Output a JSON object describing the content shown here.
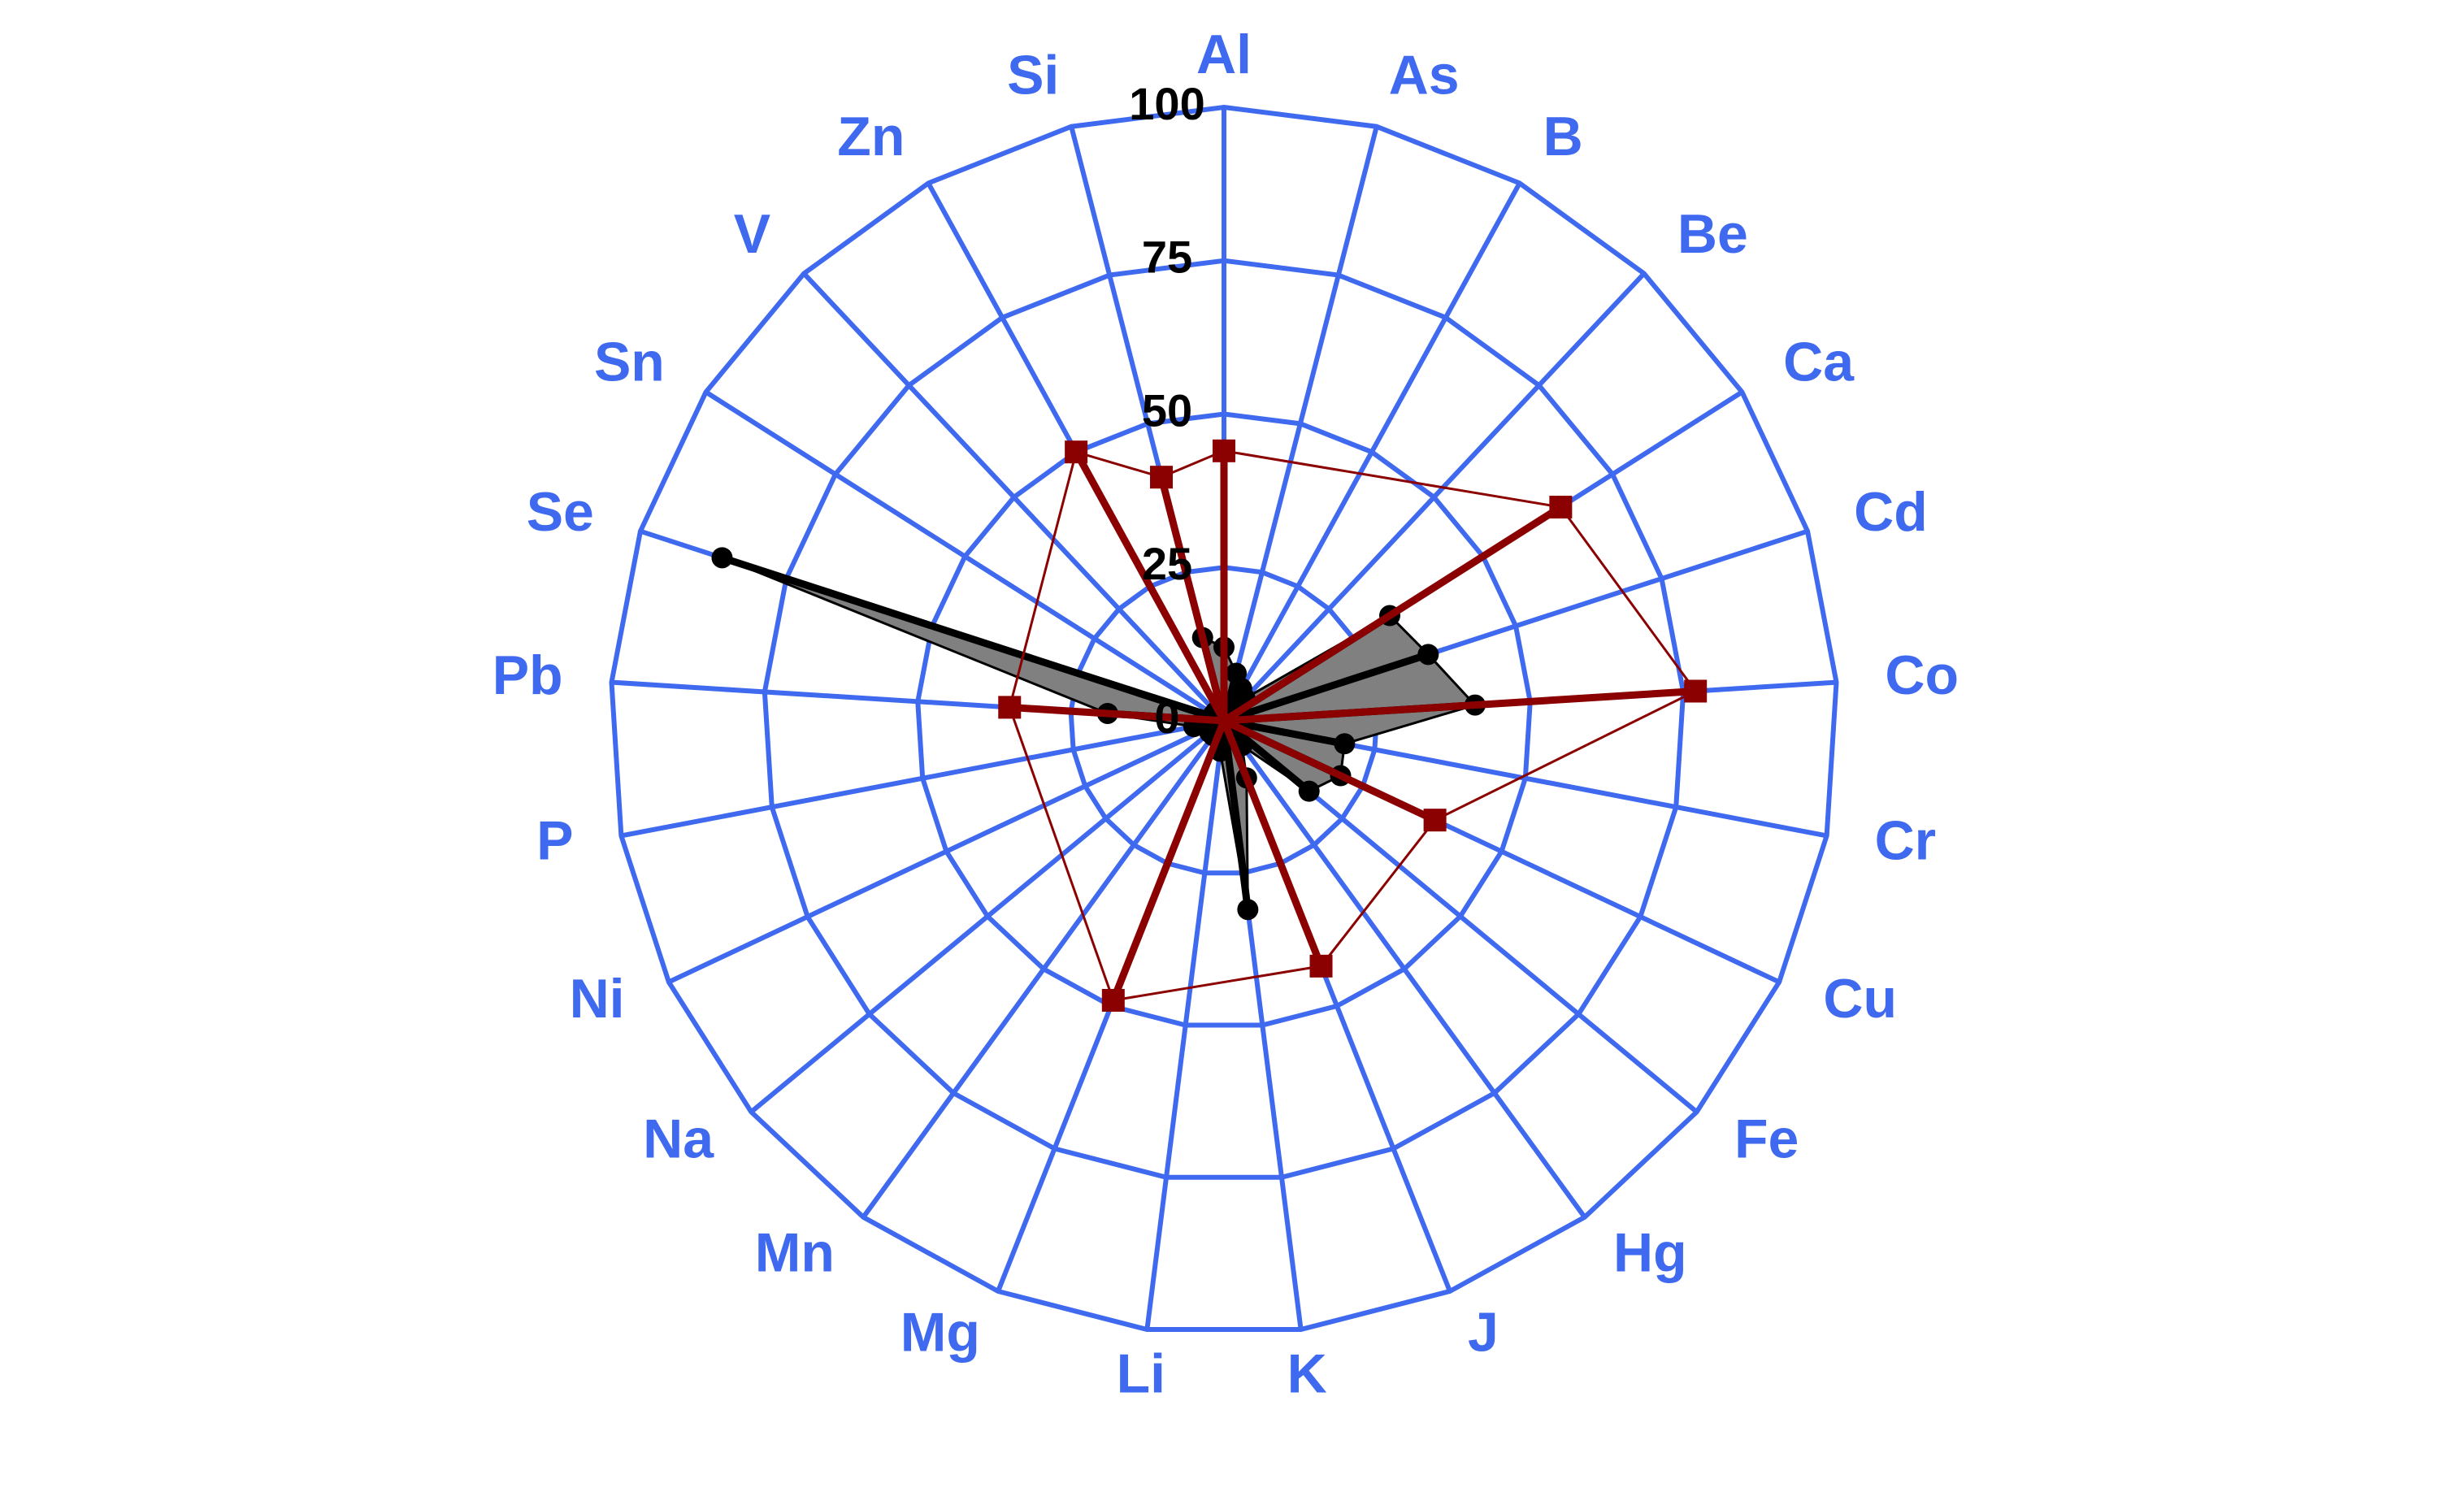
{
  "chart_data": {
    "type": "radar",
    "categories": [
      "Al",
      "As",
      "B",
      "Be",
      "Ca",
      "Cd",
      "Co",
      "Cr",
      "Cu",
      "Fe",
      "Hg",
      "J",
      "K",
      "Li",
      "Mg",
      "Mn",
      "Na",
      "Ni",
      "P",
      "Pb",
      "Se",
      "Sn",
      "V",
      "Zn",
      "Si"
    ],
    "series": [
      {
        "color": "#000000",
        "fill": "#808080",
        "values": [
          12,
          8,
          6,
          5,
          32,
          35,
          41,
          20,
          21,
          18,
          5,
          10,
          31,
          5,
          3,
          3,
          3,
          3,
          5,
          19,
          86,
          2,
          2,
          2,
          14
        ]
      },
      {
        "color": "#8b0000",
        "values": [
          44,
          null,
          null,
          null,
          65,
          null,
          77,
          null,
          38,
          null,
          null,
          43,
          null,
          null,
          49,
          null,
          null,
          null,
          null,
          35,
          null,
          null,
          null,
          50,
          41
        ]
      }
    ],
    "ylim": [
      0,
      100
    ],
    "yticks": [
      0,
      25,
      50,
      75,
      100
    ],
    "grid": true,
    "grid_color": "#3f6af0"
  }
}
